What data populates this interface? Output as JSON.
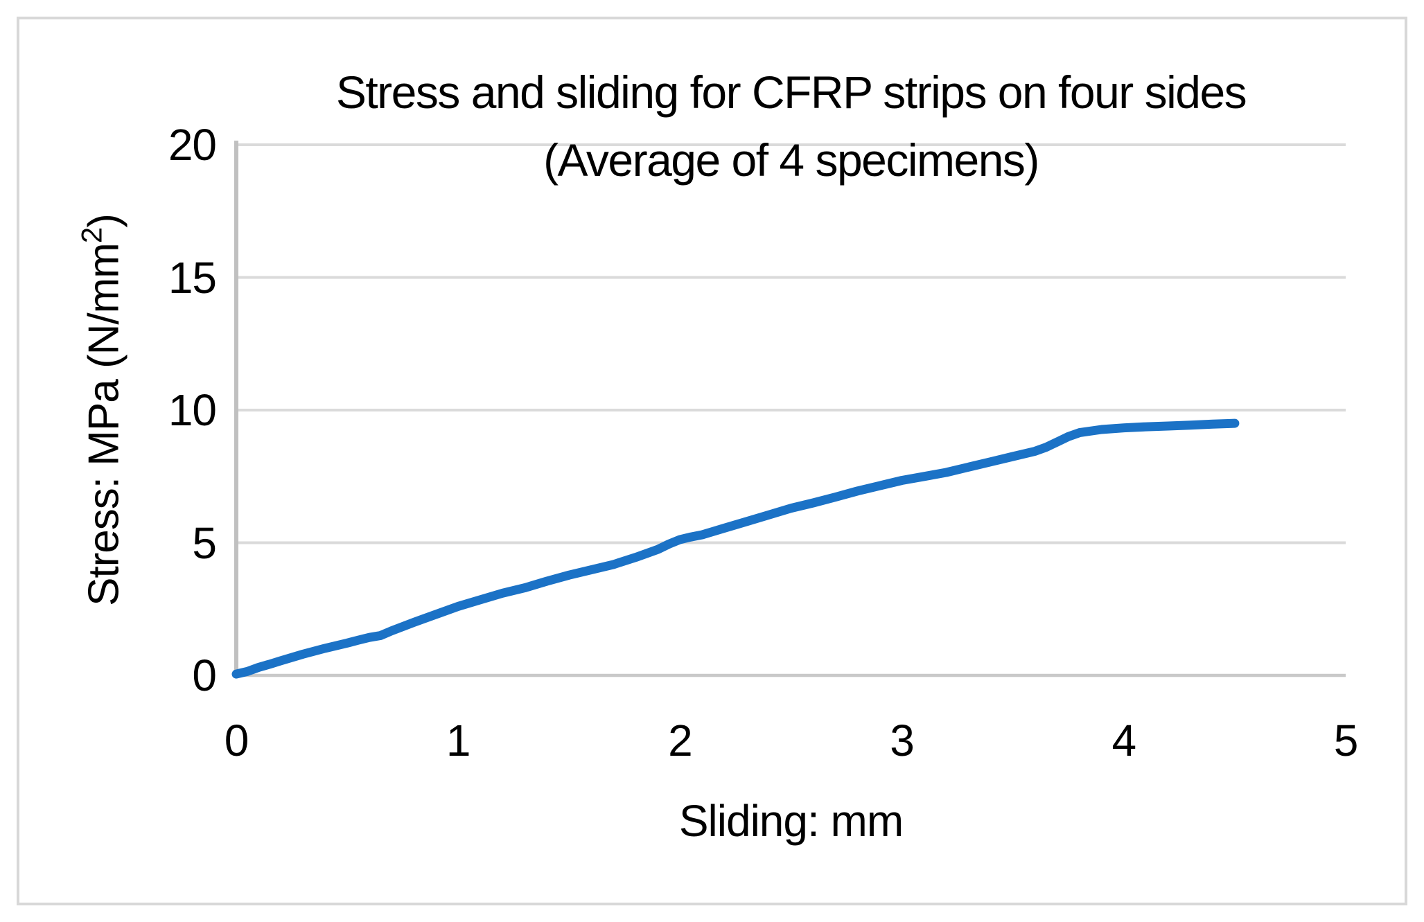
{
  "figure": {
    "border_color": "#D8D8D8",
    "background_color": "#FFFFFF"
  },
  "chart_data": {
    "type": "line",
    "title": "Stress and sliding for CFRP strips on four sides",
    "subtitle": "(Average of 4 specimens)",
    "xlabel": "Sliding: mm",
    "ylabel_main": "Stress: MPa (N/mm",
    "ylabel_sup": "2",
    "ylabel_end": ")",
    "xlim": [
      0,
      5
    ],
    "ylim": [
      0,
      20
    ],
    "x_ticks": [
      "0",
      "1",
      "2",
      "3",
      "4",
      "5"
    ],
    "y_ticks": [
      "0",
      "5",
      "10",
      "15",
      "20"
    ],
    "grid": "horizontal-only",
    "legend": "none",
    "line_color": "#1B72C6",
    "gridline_color": "#DADADA",
    "axis_line_color": "#C0C0C0",
    "baseline_color": "#C9C9C9",
    "series": [
      {
        "points": [
          [
            0.0,
            0.05
          ],
          [
            0.05,
            0.15
          ],
          [
            0.1,
            0.3
          ],
          [
            0.15,
            0.42
          ],
          [
            0.2,
            0.55
          ],
          [
            0.3,
            0.8
          ],
          [
            0.4,
            1.02
          ],
          [
            0.5,
            1.22
          ],
          [
            0.55,
            1.33
          ],
          [
            0.6,
            1.43
          ],
          [
            0.65,
            1.5
          ],
          [
            0.7,
            1.68
          ],
          [
            0.8,
            2.0
          ],
          [
            0.9,
            2.3
          ],
          [
            1.0,
            2.6
          ],
          [
            1.1,
            2.85
          ],
          [
            1.2,
            3.1
          ],
          [
            1.3,
            3.3
          ],
          [
            1.4,
            3.55
          ],
          [
            1.5,
            3.78
          ],
          [
            1.6,
            3.98
          ],
          [
            1.7,
            4.18
          ],
          [
            1.8,
            4.45
          ],
          [
            1.9,
            4.75
          ],
          [
            1.95,
            4.95
          ],
          [
            2.0,
            5.12
          ],
          [
            2.05,
            5.22
          ],
          [
            2.1,
            5.3
          ],
          [
            2.2,
            5.55
          ],
          [
            2.3,
            5.8
          ],
          [
            2.4,
            6.05
          ],
          [
            2.5,
            6.3
          ],
          [
            2.6,
            6.5
          ],
          [
            2.7,
            6.72
          ],
          [
            2.8,
            6.95
          ],
          [
            2.9,
            7.15
          ],
          [
            3.0,
            7.35
          ],
          [
            3.1,
            7.5
          ],
          [
            3.2,
            7.65
          ],
          [
            3.3,
            7.85
          ],
          [
            3.4,
            8.05
          ],
          [
            3.5,
            8.25
          ],
          [
            3.6,
            8.45
          ],
          [
            3.65,
            8.6
          ],
          [
            3.7,
            8.8
          ],
          [
            3.75,
            9.0
          ],
          [
            3.8,
            9.15
          ],
          [
            3.9,
            9.27
          ],
          [
            4.0,
            9.33
          ],
          [
            4.1,
            9.37
          ],
          [
            4.2,
            9.4
          ],
          [
            4.3,
            9.43
          ],
          [
            4.4,
            9.47
          ],
          [
            4.5,
            9.5
          ]
        ]
      }
    ]
  }
}
